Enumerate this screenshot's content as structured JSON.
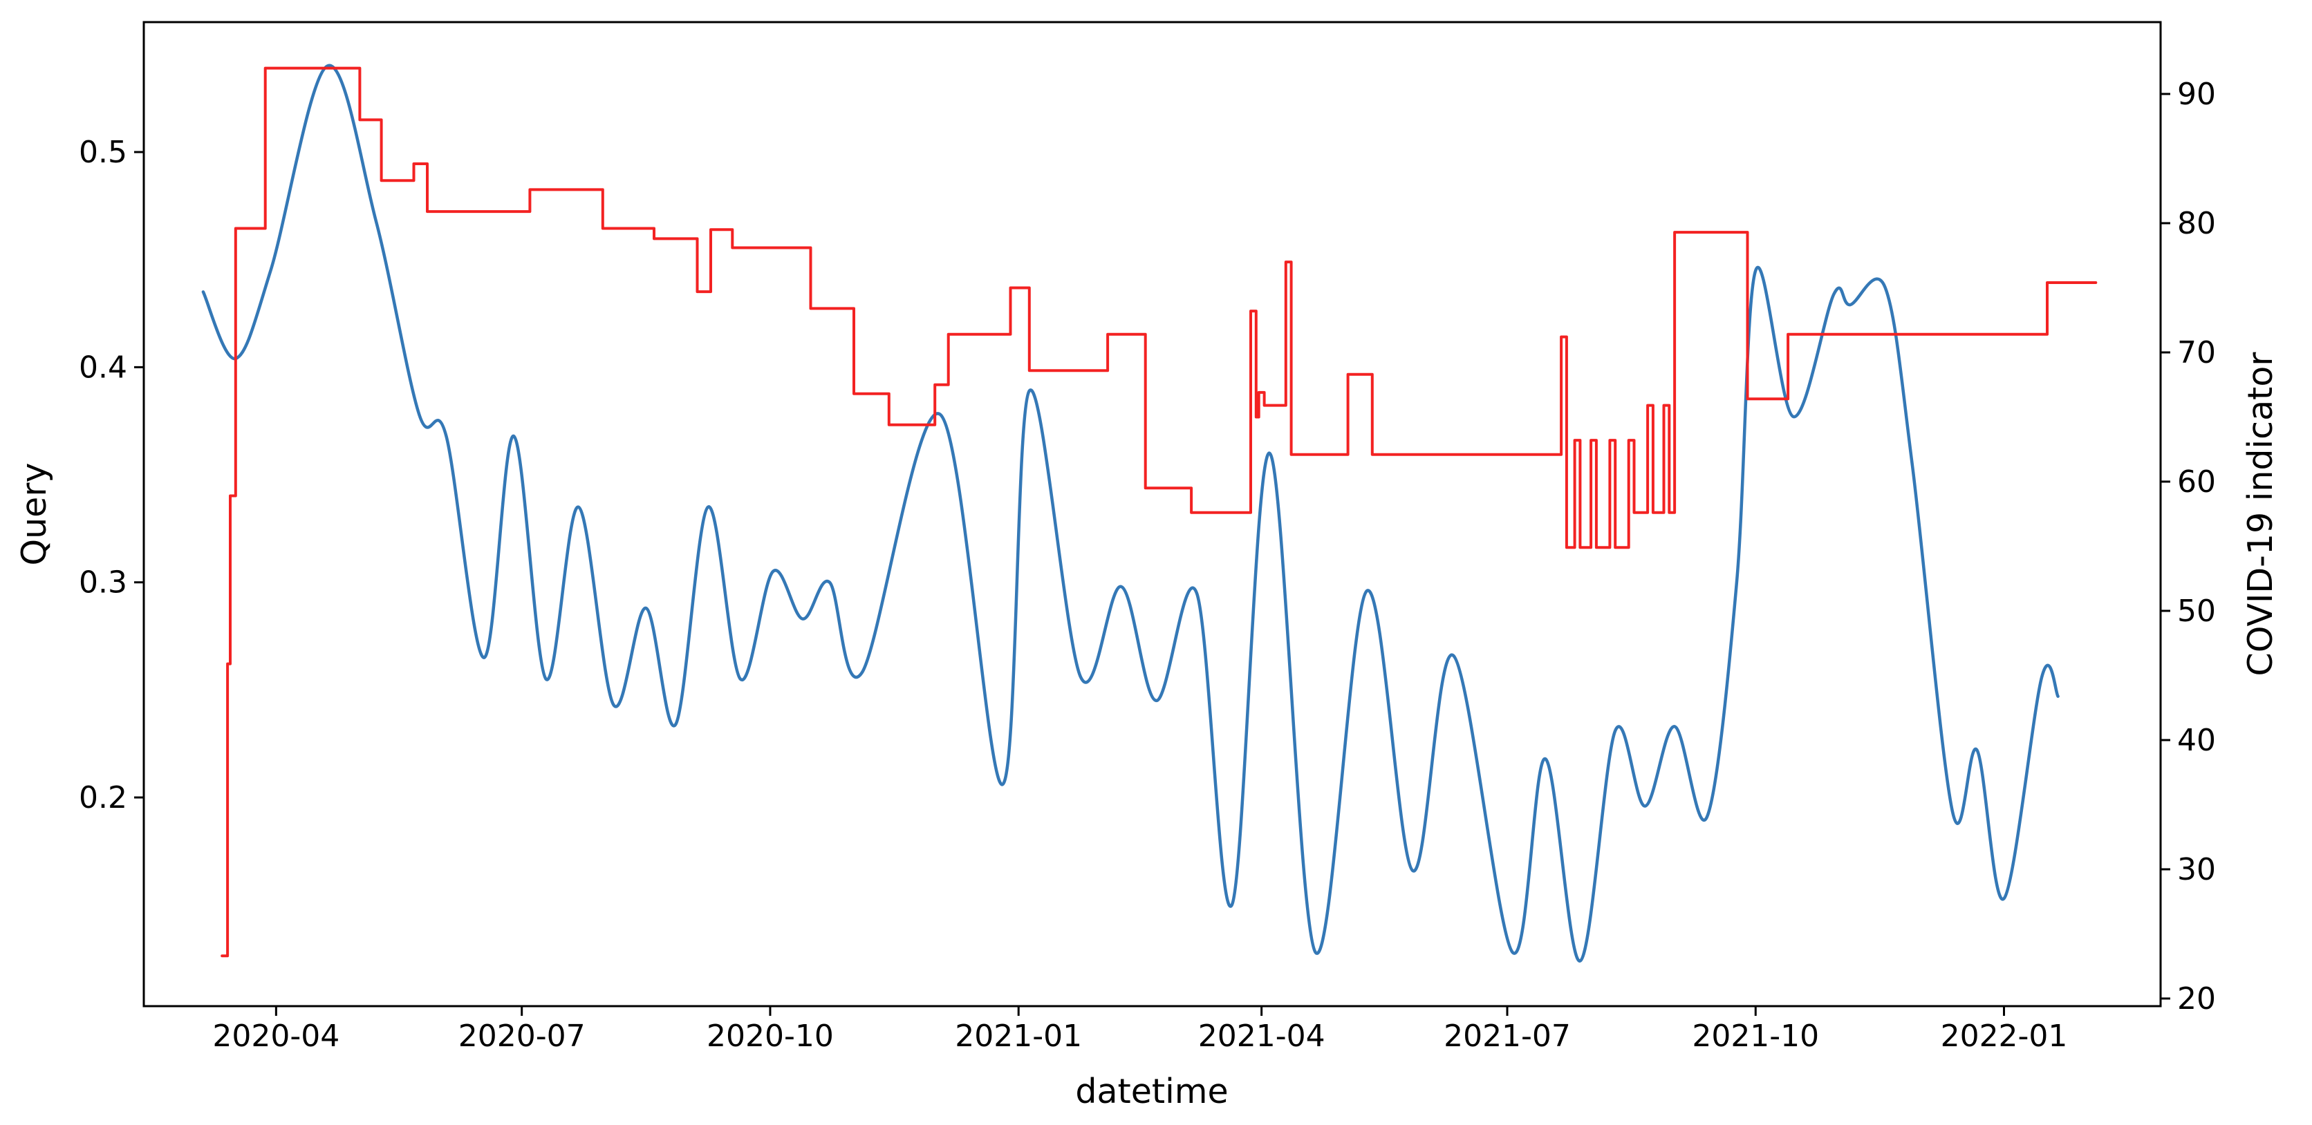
{
  "chart_data": {
    "type": "line",
    "title": "",
    "xlabel": "datetime",
    "grid": false,
    "legend": null,
    "background_color": "#ffffff",
    "frame_color": "#000000",
    "x_axis": {
      "domain": [
        "2020-02-12",
        "2022-02-28"
      ],
      "ticks": [
        {
          "label": "2020-04",
          "date": "2020-04-01"
        },
        {
          "label": "2020-07",
          "date": "2020-07-01"
        },
        {
          "label": "2020-10",
          "date": "2020-10-01"
        },
        {
          "label": "2021-01",
          "date": "2021-01-01"
        },
        {
          "label": "2021-04",
          "date": "2021-04-01"
        },
        {
          "label": "2021-07",
          "date": "2021-07-01"
        },
        {
          "label": "2021-10",
          "date": "2021-10-01"
        },
        {
          "label": "2022-01",
          "date": "2022-01-01"
        }
      ]
    },
    "y_axes": {
      "left": {
        "label": "Query",
        "lim": [
          0.103,
          0.5604
        ],
        "ticks": [
          {
            "label": "0.5",
            "value": 0.5
          },
          {
            "label": "0.4",
            "value": 0.4
          },
          {
            "label": "0.3",
            "value": 0.3
          },
          {
            "label": "0.2",
            "value": 0.2
          }
        ]
      },
      "right": {
        "label": "COVID-19 indicator",
        "lim": [
          19.41,
          95.56
        ],
        "ticks": [
          {
            "label": "90",
            "value": 90
          },
          {
            "label": "80",
            "value": 80
          },
          {
            "label": "70",
            "value": 70
          },
          {
            "label": "60",
            "value": 60
          },
          {
            "label": "50",
            "value": 50
          },
          {
            "label": "40",
            "value": 40
          },
          {
            "label": "30",
            "value": 30
          },
          {
            "label": "20",
            "value": 20
          }
        ]
      }
    },
    "series": [
      {
        "name": "Query",
        "axis": "left",
        "color": "#3478b6",
        "line_width": 4.5,
        "interpolation": "smooth",
        "points": [
          [
            "2020-03-05",
            0.435
          ],
          [
            "2020-03-17",
            0.404
          ],
          [
            "2020-03-30",
            0.445
          ],
          [
            "2020-04-20",
            0.54
          ],
          [
            "2020-05-08",
            0.468
          ],
          [
            "2020-05-24",
            0.378
          ],
          [
            "2020-06-03",
            0.368
          ],
          [
            "2020-06-17",
            0.265
          ],
          [
            "2020-06-28",
            0.368
          ],
          [
            "2020-07-10",
            0.255
          ],
          [
            "2020-07-22",
            0.335
          ],
          [
            "2020-08-04",
            0.243
          ],
          [
            "2020-08-16",
            0.288
          ],
          [
            "2020-08-27",
            0.234
          ],
          [
            "2020-09-08",
            0.335
          ],
          [
            "2020-09-20",
            0.255
          ],
          [
            "2020-10-02",
            0.305
          ],
          [
            "2020-10-13",
            0.283
          ],
          [
            "2020-10-23",
            0.3
          ],
          [
            "2020-11-04",
            0.258
          ],
          [
            "2020-12-03",
            0.378
          ],
          [
            "2020-12-26",
            0.206
          ],
          [
            "2021-01-05",
            0.389
          ],
          [
            "2021-01-24",
            0.256
          ],
          [
            "2021-02-08",
            0.298
          ],
          [
            "2021-02-21",
            0.245
          ],
          [
            "2021-03-08",
            0.295
          ],
          [
            "2021-03-21",
            0.15
          ],
          [
            "2021-04-04",
            0.36
          ],
          [
            "2021-04-21",
            0.128
          ],
          [
            "2021-05-10",
            0.296
          ],
          [
            "2021-05-27",
            0.166
          ],
          [
            "2021-06-11",
            0.266
          ],
          [
            "2021-07-03",
            0.128
          ],
          [
            "2021-07-15",
            0.218
          ],
          [
            "2021-07-28",
            0.124
          ],
          [
            "2021-08-10",
            0.231
          ],
          [
            "2021-08-21",
            0.196
          ],
          [
            "2021-09-01",
            0.233
          ],
          [
            "2021-09-13",
            0.191
          ],
          [
            "2021-09-24",
            0.3
          ],
          [
            "2021-10-01",
            0.445
          ],
          [
            "2021-10-15",
            0.377
          ],
          [
            "2021-10-30",
            0.434
          ],
          [
            "2021-11-05",
            0.429
          ],
          [
            "2021-11-18",
            0.437
          ],
          [
            "2021-11-28",
            0.355
          ],
          [
            "2021-12-13",
            0.193
          ],
          [
            "2021-12-22",
            0.222
          ],
          [
            "2022-01-01",
            0.153
          ],
          [
            "2022-01-15",
            0.256
          ],
          [
            "2022-01-21",
            0.247
          ]
        ]
      },
      {
        "name": "COVID-19 indicator",
        "axis": "right",
        "color": "#f32222",
        "line_width": 4,
        "interpolation": "step-post",
        "points": [
          [
            "2020-03-12",
            23.3
          ],
          [
            "2020-03-14",
            45.9
          ],
          [
            "2020-03-15",
            58.9
          ],
          [
            "2020-03-17",
            79.6
          ],
          [
            "2020-03-28",
            92.0
          ],
          [
            "2020-05-02",
            88.0
          ],
          [
            "2020-05-10",
            83.3
          ],
          [
            "2020-05-22",
            84.6
          ],
          [
            "2020-05-27",
            80.9
          ],
          [
            "2020-07-04",
            82.6
          ],
          [
            "2020-07-31",
            79.6
          ],
          [
            "2020-08-19",
            78.8
          ],
          [
            "2020-09-04",
            74.7
          ],
          [
            "2020-09-09",
            79.5
          ],
          [
            "2020-09-17",
            78.1
          ],
          [
            "2020-10-16",
            73.4
          ],
          [
            "2020-11-01",
            66.8
          ],
          [
            "2020-11-14",
            64.4
          ],
          [
            "2020-12-01",
            67.5
          ],
          [
            "2020-12-06",
            71.4
          ],
          [
            "2020-12-29",
            75.0
          ],
          [
            "2021-01-05",
            68.6
          ],
          [
            "2021-02-03",
            71.4
          ],
          [
            "2021-02-17",
            59.5
          ],
          [
            "2021-03-06",
            57.6
          ],
          [
            "2021-03-28",
            73.2
          ],
          [
            "2021-03-30",
            65.0
          ],
          [
            "2021-03-31",
            66.9
          ],
          [
            "2021-04-02",
            65.9
          ],
          [
            "2021-04-10",
            77.0
          ],
          [
            "2021-04-12",
            62.1
          ],
          [
            "2021-05-03",
            68.3
          ],
          [
            "2021-05-12",
            62.1
          ],
          [
            "2021-07-21",
            71.2
          ],
          [
            "2021-07-23",
            54.9
          ],
          [
            "2021-07-26",
            63.2
          ],
          [
            "2021-07-28",
            54.9
          ],
          [
            "2021-08-01",
            63.2
          ],
          [
            "2021-08-03",
            54.9
          ],
          [
            "2021-08-08",
            63.2
          ],
          [
            "2021-08-10",
            54.9
          ],
          [
            "2021-08-15",
            63.2
          ],
          [
            "2021-08-17",
            57.6
          ],
          [
            "2021-08-22",
            65.9
          ],
          [
            "2021-08-24",
            57.6
          ],
          [
            "2021-08-28",
            65.9
          ],
          [
            "2021-08-30",
            57.6
          ],
          [
            "2021-09-01",
            79.3
          ],
          [
            "2021-09-28",
            66.4
          ],
          [
            "2021-10-13",
            71.4
          ],
          [
            "2022-01-17",
            75.4
          ],
          [
            "2022-02-04",
            75.4
          ]
        ]
      }
    ]
  }
}
